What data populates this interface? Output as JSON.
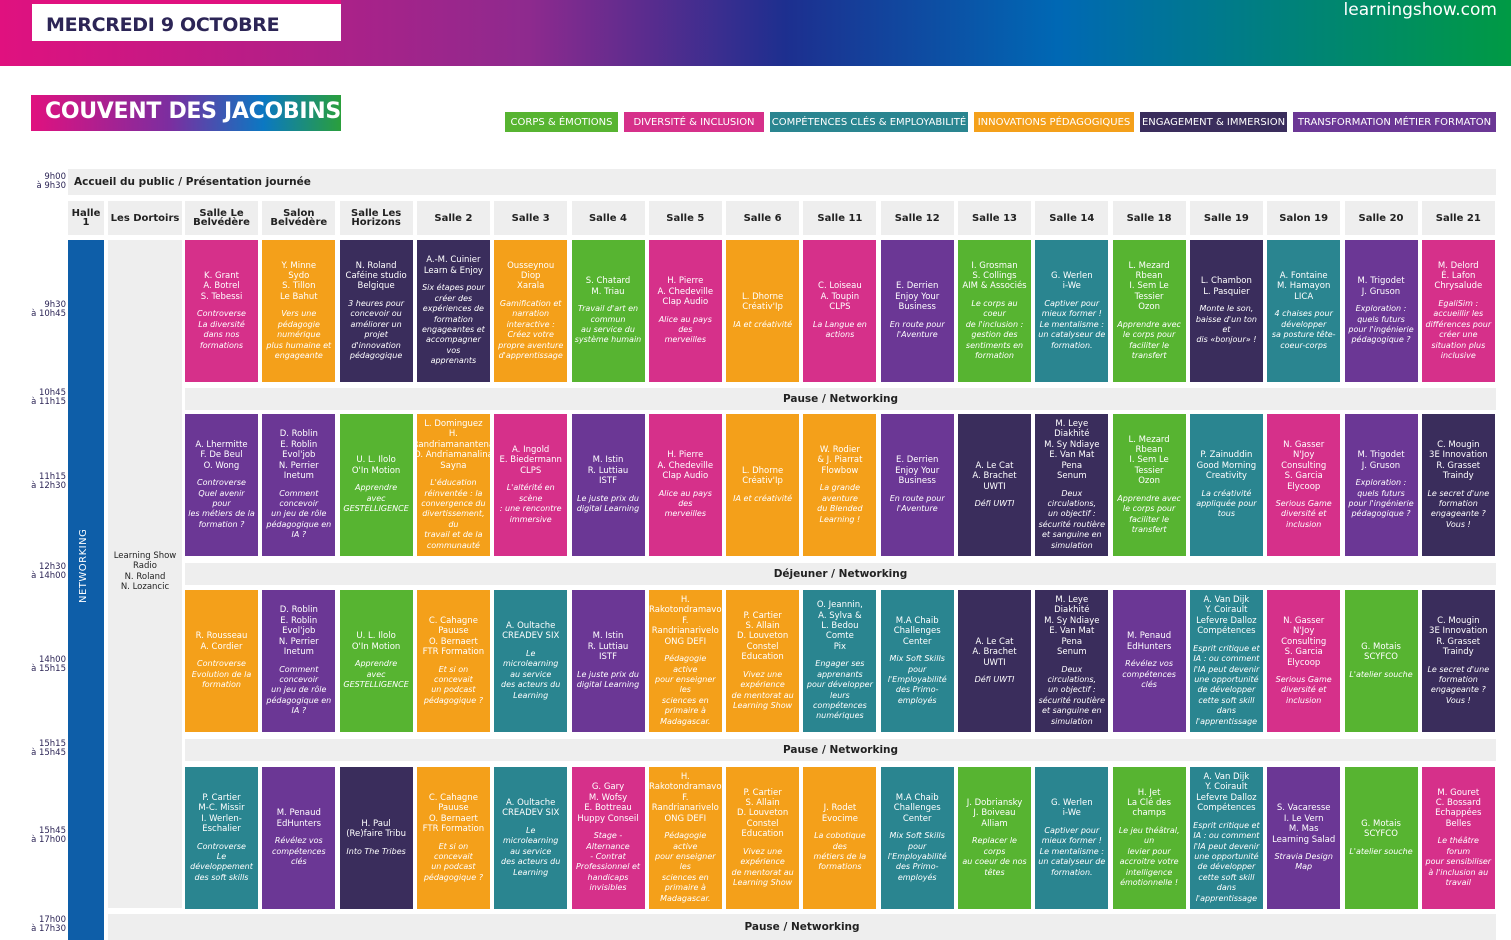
{
  "header": {
    "date": "MERCREDI 9 OCTOBRE",
    "site": "learningshow.com",
    "venue": "COUVENT DES JACOBINS"
  },
  "legend": [
    {
      "label": "CORPS & ÉMOTIONS",
      "color": "#57b431"
    },
    {
      "label": "DIVERSITÉ & INCLUSION",
      "color": "#d6308a"
    },
    {
      "label": "COMPÉTENCES CLÉS & EMPLOYABILITÉ",
      "color": "#2a8590"
    },
    {
      "label": "INNOVATIONS PÉDAGOGIQUES",
      "color": "#f4a01a"
    },
    {
      "label": "ENGAGEMENT & IMMERSION",
      "color": "#3a2d5c"
    },
    {
      "label": "TRANSFORMATION MÉTIER FORMATON",
      "color": "#6b3795"
    }
  ],
  "times": [
    {
      "a": "9h00",
      "b": "à 9h30"
    },
    {
      "a": "9h30",
      "b": "à 10h45"
    },
    {
      "a": "10h45",
      "b": "à 11h15"
    },
    {
      "a": "11h15",
      "b": "à 12h30"
    },
    {
      "a": "12h30",
      "b": "à 14h00"
    },
    {
      "a": "14h00",
      "b": "à 15h15"
    },
    {
      "a": "15h15",
      "b": "à 15h45"
    },
    {
      "a": "15h45",
      "b": "à 17h00"
    },
    {
      "a": "17h00",
      "b": "à 17h30"
    }
  ],
  "bands": {
    "welcome": "Accueil du public / Présentation journée",
    "pause1": "Pause / Networking",
    "lunch": "Déjeuner / Networking",
    "pause2": "Pause / Networking",
    "pause3": "Pause / Networking"
  },
  "rooms": {
    "hall": "Halle 1",
    "dortoirs": "Les Dortoirs",
    "list": [
      "Salle Le Belvédère",
      "Salon Belvédère",
      "Salle Les Horizons",
      "Salle 2",
      "Salle 3",
      "Salle 4",
      "Salle 5",
      "Salle 6",
      "Salle 11",
      "Salle 12",
      "Salle 13",
      "Salle 14",
      "Salle 18",
      "Salle 19",
      "Salon 19",
      "Salle 20",
      "Salle 21"
    ]
  },
  "networking": "NETWORKING",
  "radio": "Learning Show\nRadio\nN. Roland\nN. Lozancic",
  "sessions": [
    [
      {
        "c": "#d6308a",
        "s": "K. Grant\nA. Botrel\nS. Tebessi",
        "t": "Controverse\nLa diversité\ndans nos\nformations"
      },
      {
        "c": "#f4a01a",
        "s": "Y. Minne\nSydo\nS. Tillon\nLe Bahut",
        "t": "Vers une\npédagogie\nnumérique\nplus humaine et\nengageante"
      },
      {
        "c": "#3a2d5c",
        "s": "N. Roland\nCaféine studio\nBelgique",
        "t": "3 heures pour\nconcevoir ou\naméliorer un\nprojet\nd'innovation\npédagogique"
      },
      {
        "c": "#3a2d5c",
        "s": "A.-M. Cuinier\nLearn & Enjoy",
        "t": "Six étapes pour\ncréer des\nexpériences de\nformation\nengageantes et\naccompagner vos\napprenants"
      },
      {
        "c": "#f4a01a",
        "s": "Ousseynou Diop\nXarala",
        "t": "Gamification et\nnarration\ninteractive :\nCréez votre\npropre aventure\nd'apprentissage"
      },
      {
        "c": "#57b431",
        "s": "S. Chatard\nM. Triau",
        "t": "Travail d'art en\ncommun\nau service du\nsystème humain"
      },
      {
        "c": "#d6308a",
        "s": "H. Pierre\nA. Chedeville\nClap Audio",
        "t": "Alice au pays des\nmerveilles"
      },
      {
        "c": "#f4a01a",
        "s": "L. Dhorne\nCréativ'Ip",
        "t": "IA et créativité"
      },
      {
        "c": "#d6308a",
        "s": "C. Loiseau\nA. Toupin\nCLPS",
        "t": "La Langue en\nactions"
      },
      {
        "c": "#6b3795",
        "s": "E. Derrien\nEnjoy Your\nBusiness",
        "t": "En route pour\nl'Aventure"
      },
      {
        "c": "#57b431",
        "s": "I. Grosman\nS. Collings\nAIM & Associés",
        "t": "Le corps au coeur\nde l'inclusion :\ngestion des\nsentiments en\nformation"
      },
      {
        "c": "#2a8590",
        "s": "G. Werlen\ni-We",
        "t": "Captiver pour\nmieux former !\nLe mentalisme :\nun catalyseur de\nformation."
      },
      {
        "c": "#57b431",
        "s": "L. Mezard\nRbean\nI. Sem Le\nTessier\nOzon",
        "t": "Apprendre avec\nle corps pour\nfaciliter le\ntransfert"
      },
      {
        "c": "#3a2d5c",
        "s": "L. Chambon\nL. Pasquier",
        "t": "Monte le son,\nbaisse d'un ton et\ndis «bonjour» !"
      },
      {
        "c": "#2a8590",
        "s": "A. Fontaine\nM. Hamayon\nLICA",
        "t": "4 chaises pour\ndévelopper\nsa posture tête-\ncoeur-corps"
      },
      {
        "c": "#6b3795",
        "s": "M. Trigodet\nJ. Gruson",
        "t": "Exploration :\nquels futurs\npour l'ingénierie\npédagogique ?"
      },
      {
        "c": "#d6308a",
        "s": "M. Delord\nÉ. Lafon\nChrysalude",
        "t": "EgaliSim :\naccueillir les\ndifférences pour\ncréer une\nsituation plus\ninclusive"
      }
    ],
    [
      {
        "c": "#6b3795",
        "s": "A. Lhermitte\nF. De Beul\nO. Wong",
        "t": "Controverse\nQuel avenir pour\nles métiers de la\nformation ?"
      },
      {
        "c": "#6b3795",
        "s": "D. Roblin\nE. Roblin\nEvol'job\nN. Perrier\nInetum",
        "t": "Comment\nconcevoir\nun jeu de rôle\npédagogique en\nIA ?"
      },
      {
        "c": "#57b431",
        "s": "U. L. Ilolo\nO'In Motion",
        "t": "Apprendre\navec\nGESTELLIGENCE"
      },
      {
        "c": "#f4a01a",
        "s": "L. Dominguez\nH.\nRandriamanantena\nO. Andriamanalina\nSayna",
        "t": "L'éducation\nréinventée : la\nconvergence du\ndivertissement, du\ntravail et de la\ncommunauté"
      },
      {
        "c": "#d6308a",
        "s": "A. Ingold\nE. Biedermann\nCLPS",
        "t": "L'altérité en scène\n: une rencontre\nimmersive"
      },
      {
        "c": "#6b3795",
        "s": "M. Istin\nR. Luttiau\nISTF",
        "t": "Le juste prix du\ndigital Learning"
      },
      {
        "c": "#d6308a",
        "s": "H. Pierre\nA. Chedeville\nClap Audio",
        "t": "Alice au pays des\nmerveilles"
      },
      {
        "c": "#f4a01a",
        "s": "L. Dhorne\nCréativ'Ip",
        "t": "IA et créativité"
      },
      {
        "c": "#f4a01a",
        "s": "W. Rodier\n& J. Piarrat\nFlowbow",
        "t": "La grande\naventure\ndu Blended\nLearning !"
      },
      {
        "c": "#6b3795",
        "s": "E. Derrien\nEnjoy Your\nBusiness",
        "t": "En route pour\nl'Aventure"
      },
      {
        "c": "#3a2d5c",
        "s": "A. Le Cat\nA. Brachet\nUWTI",
        "t": "Défi UWTI"
      },
      {
        "c": "#3a2d5c",
        "s": "M. Leye Diakhité\nM. Sy Ndiaye\nE. Van Mat Pena\nSenum",
        "t": "Deux circulations,\nun objectif :\nsécurité routière\net sanguine en\nsimulation"
      },
      {
        "c": "#57b431",
        "s": "L. Mezard\nRbean\nI. Sem Le\nTessier\nOzon",
        "t": "Apprendre avec\nle corps pour\nfaciliter le\ntransfert"
      },
      {
        "c": "#2a8590",
        "s": "P. Zainuddin\nGood Morning\nCreativity",
        "t": "La créativité\nappliquée pour\ntous"
      },
      {
        "c": "#d6308a",
        "s": "N. Gasser\nN'Joy Consulting\nS. Garcia\nElycoop",
        "t": "Serious Game\ndiversité et\ninclusion"
      },
      {
        "c": "#6b3795",
        "s": "M. Trigodet\nJ. Gruson",
        "t": "Exploration :\nquels futurs\npour l'ingénierie\npédagogique ?"
      },
      {
        "c": "#3a2d5c",
        "s": "C. Mougin\n3E Innovation\nR. Grasset\nTraindy",
        "t": "Le secret d'une\nformation\nengageante ?\nVous !"
      }
    ],
    [
      {
        "c": "#f4a01a",
        "s": "R. Rousseau\nA. Cordier",
        "t": "Controverse\nEvolution de la\nformation"
      },
      {
        "c": "#6b3795",
        "s": "D. Roblin\nE. Roblin\nEvol'job\nN. Perrier\nInetum",
        "t": "Comment\nconcevoir\nun jeu de rôle\npédagogique en\nIA ?"
      },
      {
        "c": "#57b431",
        "s": "U. L. Ilolo\nO'In Motion",
        "t": "Apprendre\navec\nGESTELLIGENCE"
      },
      {
        "c": "#f4a01a",
        "s": "C. Cahagne\nPauuse\nO. Bernaert\nFTR Formation",
        "t": "Et si on concevait\nun podcast\npédagogique ?"
      },
      {
        "c": "#2a8590",
        "s": "A. Oultache\nCREADEV SIX",
        "t": "Le microlearning\nau service\ndes acteurs du\nLearning"
      },
      {
        "c": "#6b3795",
        "s": "M. Istin\nR. Luttiau\nISTF",
        "t": "Le juste prix du\ndigital Learning"
      },
      {
        "c": "#f4a01a",
        "s": "H.\nRakotondramavo\nF.\nRandrianarivelo\nONG DEFI",
        "t": "Pédagogie active\npour enseigner les\nsciences en\nprimaire à\nMadagascar."
      },
      {
        "c": "#f4a01a",
        "s": "P. Cartier\nS. Allain\nD. Louveton\nConstel\nEducation",
        "t": "Vivez une\nexpérience\nde mentorat au\nLearning Show"
      },
      {
        "c": "#2a8590",
        "s": "O. Jeannin,\nA. Sylva &\nL. Bedou\nComte\nPix",
        "t": "Engager ses\napprenants\npour développer\nleurs compétences\nnumériques"
      },
      {
        "c": "#2a8590",
        "s": "M.A Chaib\nChallenges\nCenter",
        "t": "Mix Soft Skills\npour\nl'Employabilité\ndes Primo-\nemployés"
      },
      {
        "c": "#3a2d5c",
        "s": "A. Le Cat\nA. Brachet\nUWTI",
        "t": "Défi UWTI"
      },
      {
        "c": "#3a2d5c",
        "s": "M. Leye Diakhité\nM. Sy Ndiaye\nE. Van Mat Pena\nSenum",
        "t": "Deux circulations,\nun objectif :\nsécurité routière\net sanguine en\nsimulation"
      },
      {
        "c": "#6b3795",
        "s": "M. Penaud\nEdHunters",
        "t": "Révélez vos\ncompétences clés"
      },
      {
        "c": "#2a8590",
        "s": "A. Van Dijk\nY. Coirault\nLefevre Dalloz\nCompétences",
        "t": "Esprit critique et\nIA : ou comment\nl'IA peut devenir\nune opportunité\nde développer\ncette soft skill\ndans\nl'apprentissage"
      },
      {
        "c": "#d6308a",
        "s": "N. Gasser\nN'Joy Consulting\nS. Garcia\nElycoop",
        "t": "Serious Game\ndiversité et\ninclusion"
      },
      {
        "c": "#57b431",
        "s": "G. Motais\nSCYFCO",
        "t": "L'atelier souche"
      },
      {
        "c": "#3a2d5c",
        "s": "C. Mougin\n3E Innovation\nR. Grasset\nTraindy",
        "t": "Le secret d'une\nformation\nengageante ?\nVous !"
      }
    ],
    [
      {
        "c": "#2a8590",
        "s": "P. Cartier\nM-C. Missir\nI. Werlen-\nEschalier",
        "t": "Controverse\nLe développement\ndes soft skills"
      },
      {
        "c": "#6b3795",
        "s": "M. Penaud\nEdHunters",
        "t": "Révélez vos\ncompétences clés"
      },
      {
        "c": "#3a2d5c",
        "s": "H. Paul\n(Re)faire Tribu",
        "t": "Into The Tribes"
      },
      {
        "c": "#f4a01a",
        "s": "C. Cahagne\nPauuse\nO. Bernaert\nFTR Formation",
        "t": "Et si on concevait\nun podcast\npédagogique ?"
      },
      {
        "c": "#2a8590",
        "s": "A. Oultache\nCREADEV SIX",
        "t": "Le microlearning\nau service\ndes acteurs du\nLearning"
      },
      {
        "c": "#d6308a",
        "s": "G. Gary\nM. Wofsy\nE. Bottreau\nHuppy Conseil",
        "t": "Stage - Alternance\n- Contrat\nProfessionnel et\nhandicaps\ninvisibles"
      },
      {
        "c": "#f4a01a",
        "s": "H.\nRakotondramavo\nF.\nRandrianarivelo\nONG DEFI",
        "t": "Pédagogie active\npour enseigner les\nsciences en\nprimaire à\nMadagascar."
      },
      {
        "c": "#f4a01a",
        "s": "P. Cartier\nS. Allain\nD. Louveton\nConstel\nEducation",
        "t": "Vivez une\nexpérience\nde mentorat au\nLearning Show"
      },
      {
        "c": "#f4a01a",
        "s": "J. Rodet\nEvocime",
        "t": "La cobotique des\nmétiers de la\nformations"
      },
      {
        "c": "#2a8590",
        "s": "M.A Chaib\nChallenges\nCenter",
        "t": "Mix Soft Skills\npour\nl'Employabilité\ndes Primo-\nemployés"
      },
      {
        "c": "#57b431",
        "s": "J. Dobriansky\nJ. Boiveau\nAlliam",
        "t": "Replacer le corps\nau coeur de nos\ntêtes"
      },
      {
        "c": "#2a8590",
        "s": "G. Werlen\ni-We",
        "t": "Captiver pour\nmieux former !\nLe mentalisme :\nun catalyseur de\nformation."
      },
      {
        "c": "#57b431",
        "s": "H. Jet\nLa Clé des\nchamps",
        "t": "Le jeu théâtral, un\nlevier pour\naccroitre votre\nintelligence\némotionnelle !"
      },
      {
        "c": "#2a8590",
        "s": "A. Van Dijk\nY. Coirault\nLefevre Dalloz\nCompétences",
        "t": "Esprit critique et\nIA : ou comment\nl'IA peut devenir\nune opportunité\nde développer\ncette soft skill\ndans\nl'apprentissage"
      },
      {
        "c": "#6b3795",
        "s": "S. Vacaresse\nI. Le Vern\nM. Mas\nLearning Salad",
        "t": "Stravia Design\nMap"
      },
      {
        "c": "#57b431",
        "s": "G. Motais\nSCYFCO",
        "t": "L'atelier souche"
      },
      {
        "c": "#d6308a",
        "s": "M. Gouret\nC. Bossard\nEchappées Belles",
        "t": "Le théâtre forum\npour sensibiliser\nà l'inclusion au\ntravail"
      }
    ]
  ]
}
